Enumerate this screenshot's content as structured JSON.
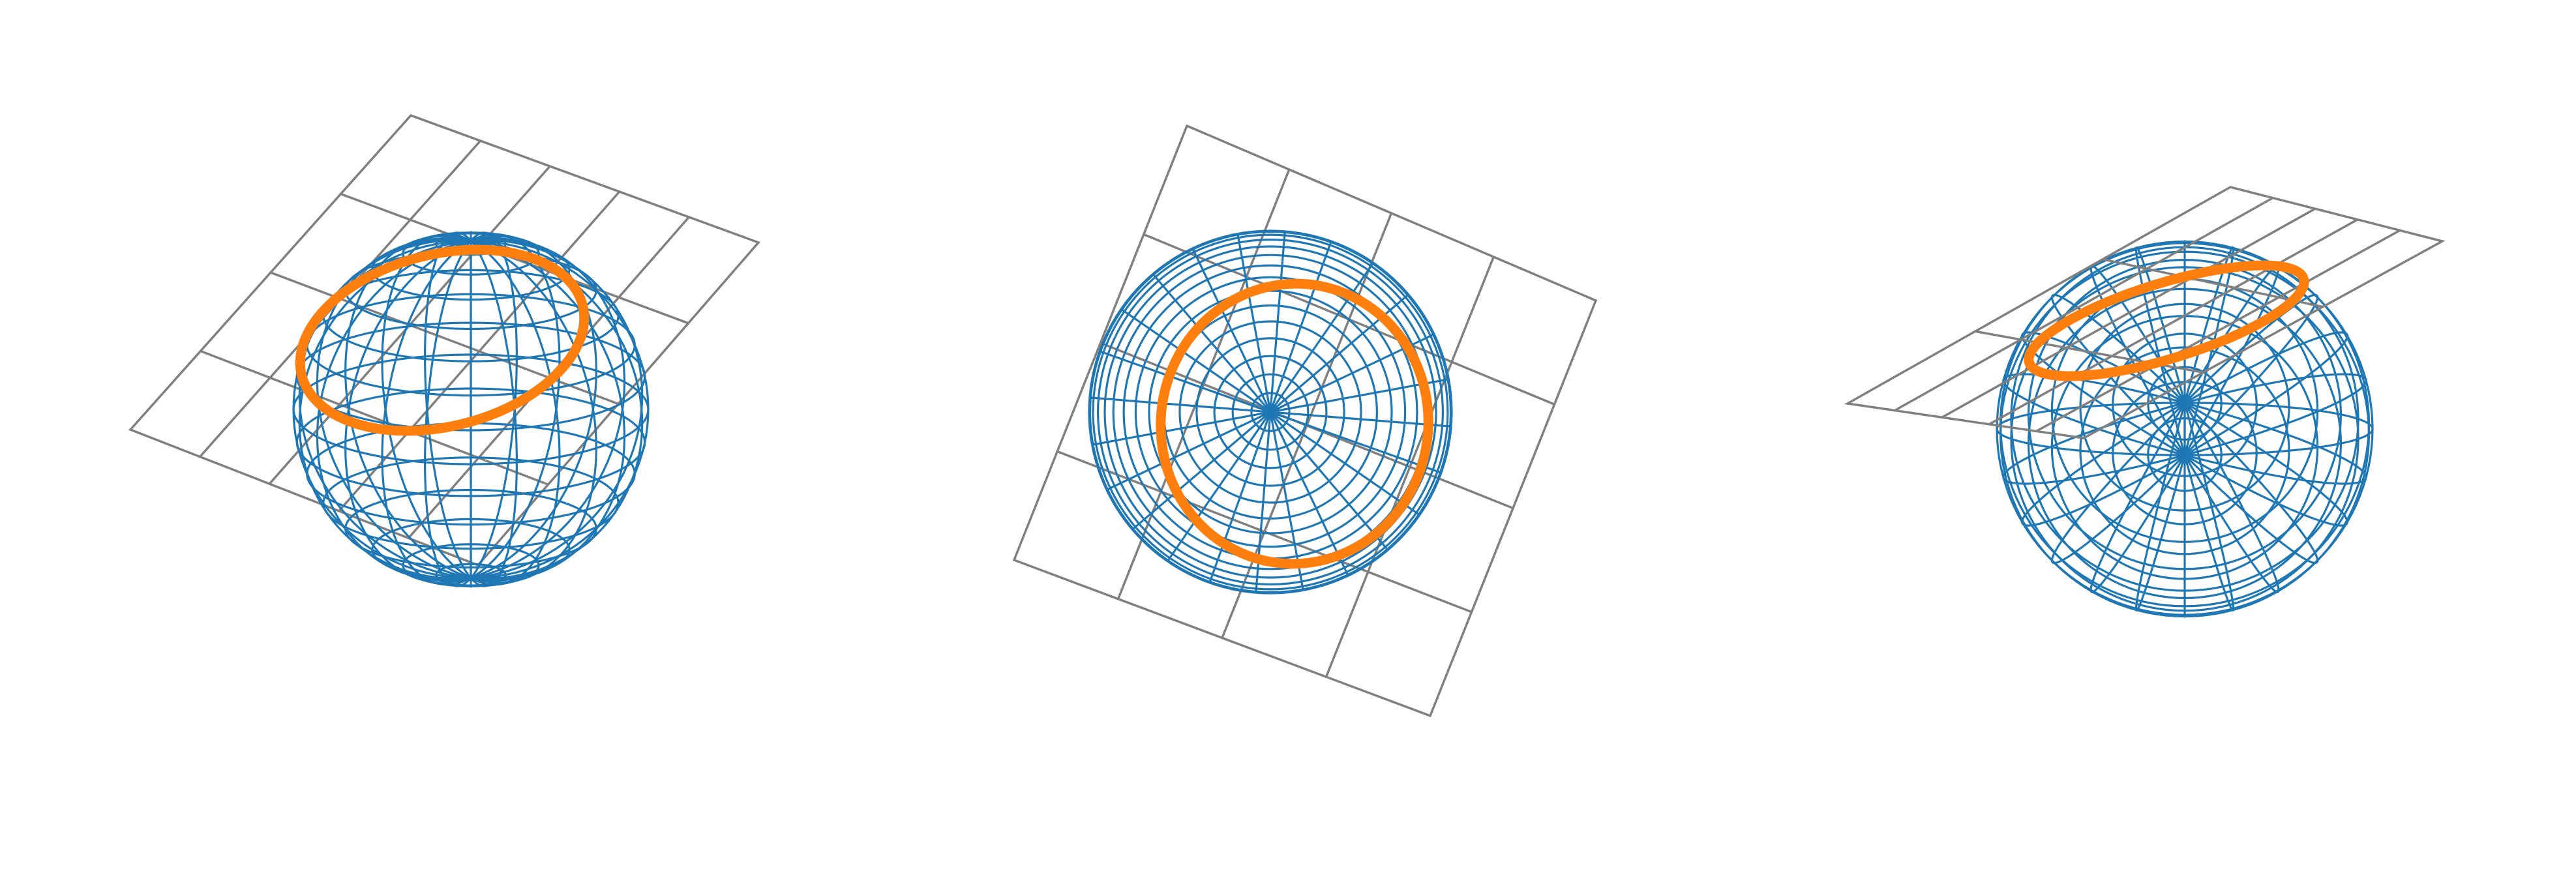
{
  "figure": {
    "panels": [
      {
        "name": "panel-left",
        "view": "oblique"
      },
      {
        "name": "panel-center",
        "view": "pole"
      },
      {
        "name": "panel-right",
        "view": "side"
      }
    ]
  },
  "colors": {
    "sphere": "#1f77b4",
    "plane": "#808080",
    "intersection": "#ff7f0e",
    "background": "#ffffff"
  }
}
